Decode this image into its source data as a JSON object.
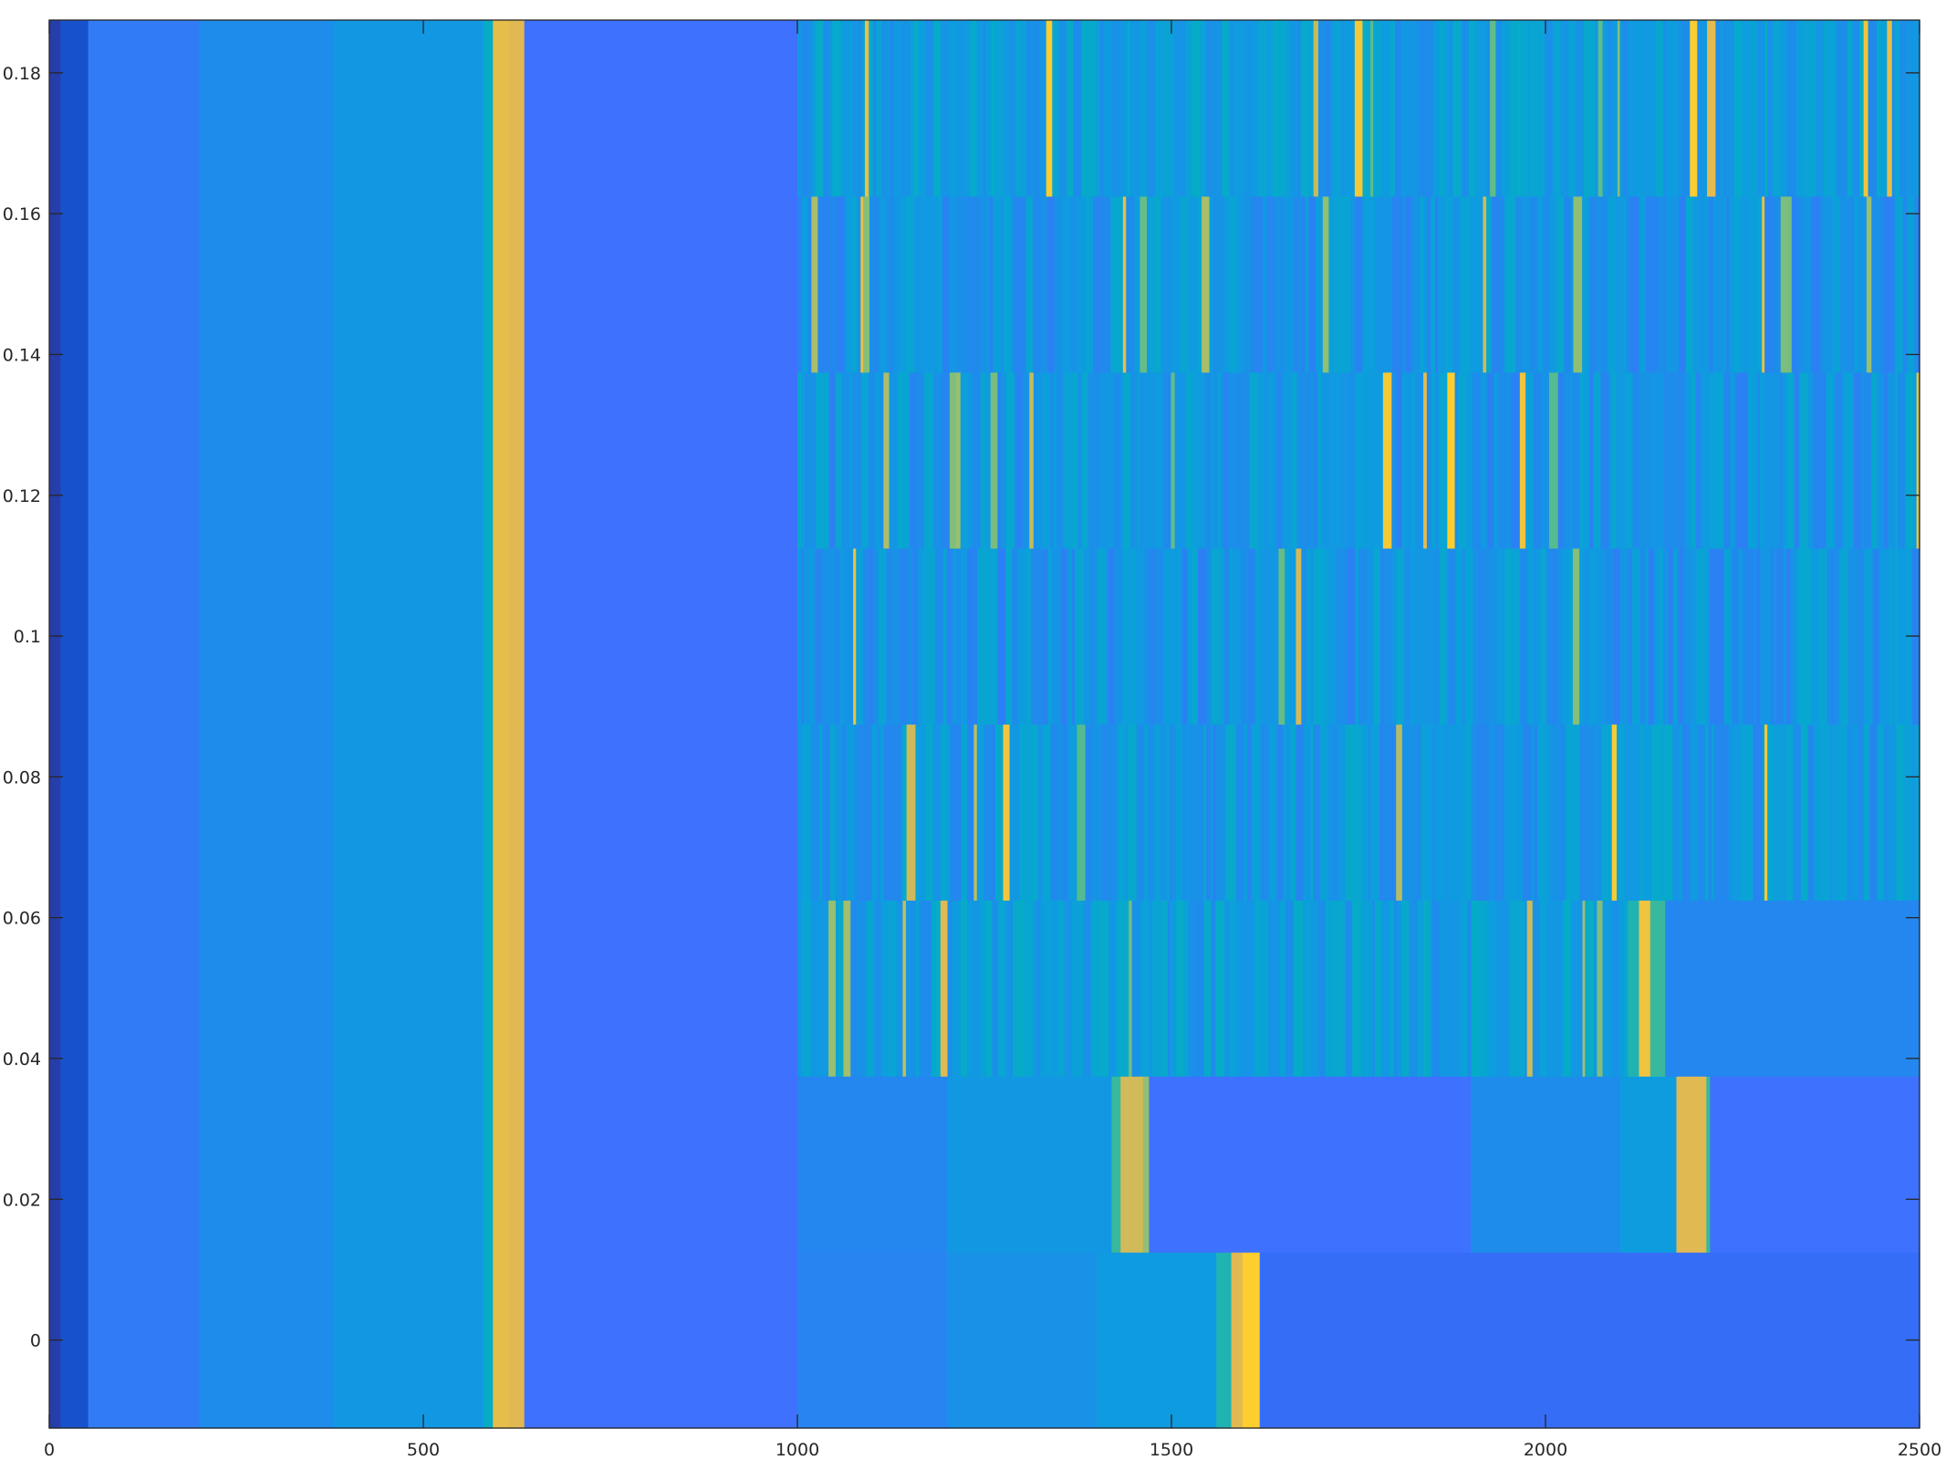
{
  "chart_data": {
    "type": "heatmap",
    "title": "",
    "xlabel": "",
    "ylabel": "",
    "xlim": [
      0,
      2500
    ],
    "ylim": [
      -0.0125,
      0.1875
    ],
    "grid": false,
    "colormap": "parula",
    "value_range": [
      0,
      1
    ],
    "x_ticks": [
      {
        "value": 0,
        "label": "0"
      },
      {
        "value": 500,
        "label": "500"
      },
      {
        "value": 1000,
        "label": "1000"
      },
      {
        "value": 1500,
        "label": "1500"
      },
      {
        "value": 2000,
        "label": "2000"
      },
      {
        "value": 2500,
        "label": "2500"
      }
    ],
    "y_ticks": [
      {
        "value": 0,
        "label": "0"
      },
      {
        "value": 0.02,
        "label": "0.02"
      },
      {
        "value": 0.04,
        "label": "0.04"
      },
      {
        "value": 0.06,
        "label": "0.06"
      },
      {
        "value": 0.08,
        "label": "0.08"
      },
      {
        "value": 0.1,
        "label": "0.1"
      },
      {
        "value": 0.12,
        "label": "0.12"
      },
      {
        "value": 0.14,
        "label": "0.14"
      },
      {
        "value": 0.16,
        "label": "0.16"
      },
      {
        "value": 0.18,
        "label": "0.18"
      }
    ],
    "rows": [
      {
        "y": 0.0,
        "columns": [
          {
            "x": [
              0,
              15
            ],
            "v": 0.04
          },
          {
            "x": [
              15,
              52
            ],
            "v": 0.08
          },
          {
            "x": [
              52,
              200
            ],
            "v": 0.24
          },
          {
            "x": [
              200,
              380
            ],
            "v": 0.3
          },
          {
            "x": [
              380,
              580
            ],
            "v": 0.37
          },
          {
            "x": [
              580,
              593
            ],
            "v": 0.5
          },
          {
            "x": [
              593,
              615
            ],
            "v": 0.82
          },
          {
            "x": [
              615,
              635
            ],
            "v": 0.8
          },
          {
            "x": [
              635,
              1000
            ],
            "v": 0.2
          },
          {
            "x": [
              1000,
              1200
            ],
            "v": 0.27
          },
          {
            "x": [
              1200,
              1400
            ],
            "v": 0.33
          },
          {
            "x": [
              1400,
              1560
            ],
            "v": 0.39
          },
          {
            "x": [
              1560,
              1580
            ],
            "v": 0.55
          },
          {
            "x": [
              1580,
              1595
            ],
            "v": 0.8
          },
          {
            "x": [
              1595,
              1618
            ],
            "v": 0.9
          },
          {
            "x": [
              1618,
              2500
            ],
            "v": 0.18
          }
        ]
      },
      {
        "y": 0.025,
        "columns": [
          {
            "x": [
              0,
              15
            ],
            "v": 0.04
          },
          {
            "x": [
              15,
              52
            ],
            "v": 0.08
          },
          {
            "x": [
              52,
              200
            ],
            "v": 0.24
          },
          {
            "x": [
              200,
              380
            ],
            "v": 0.3
          },
          {
            "x": [
              380,
              580
            ],
            "v": 0.37
          },
          {
            "x": [
              580,
              593
            ],
            "v": 0.5
          },
          {
            "x": [
              593,
              615
            ],
            "v": 0.82
          },
          {
            "x": [
              615,
              635
            ],
            "v": 0.8
          },
          {
            "x": [
              635,
              1000
            ],
            "v": 0.2
          },
          {
            "x": [
              1000,
              1200
            ],
            "v": 0.28
          },
          {
            "x": [
              1200,
              1420
            ],
            "v": 0.37
          },
          {
            "x": [
              1420,
              1432
            ],
            "v": 0.6
          },
          {
            "x": [
              1432,
              1462
            ],
            "v": 0.78
          },
          {
            "x": [
              1462,
              1470
            ],
            "v": 0.7
          },
          {
            "x": [
              1470,
              1900
            ],
            "v": 0.2
          },
          {
            "x": [
              1900,
              2100
            ],
            "v": 0.3
          },
          {
            "x": [
              2100,
              2175
            ],
            "v": 0.4
          },
          {
            "x": [
              2175,
              2215
            ],
            "v": 0.8
          },
          {
            "x": [
              2215,
              2220
            ],
            "v": 0.6
          },
          {
            "x": [
              2220,
              2500
            ],
            "v": 0.2
          }
        ]
      },
      {
        "y": 0.05,
        "columns": [
          {
            "x": [
              0,
              15
            ],
            "v": 0.04
          },
          {
            "x": [
              15,
              52
            ],
            "v": 0.08
          },
          {
            "x": [
              52,
              200
            ],
            "v": 0.24
          },
          {
            "x": [
              200,
              380
            ],
            "v": 0.3
          },
          {
            "x": [
              380,
              580
            ],
            "v": 0.37
          },
          {
            "x": [
              580,
              593
            ],
            "v": 0.5
          },
          {
            "x": [
              593,
              615
            ],
            "v": 0.82
          },
          {
            "x": [
              615,
              635
            ],
            "v": 0.8
          },
          {
            "x": [
              635,
              1000
            ],
            "v": 0.2
          },
          {
            "x": [
              1000,
              2110
            ],
            "v": 0.4,
            "stripes": true,
            "seed": 11
          },
          {
            "x": [
              2110,
              2125
            ],
            "v": 0.55
          },
          {
            "x": [
              2125,
              2140
            ],
            "v": 0.85
          },
          {
            "x": [
              2140,
              2160
            ],
            "v": 0.6
          },
          {
            "x": [
              2160,
              2500
            ],
            "v": 0.28
          }
        ]
      },
      {
        "y": 0.075,
        "columns": [
          {
            "x": [
              0,
              15
            ],
            "v": 0.04
          },
          {
            "x": [
              15,
              52
            ],
            "v": 0.08
          },
          {
            "x": [
              52,
              200
            ],
            "v": 0.24
          },
          {
            "x": [
              200,
              380
            ],
            "v": 0.3
          },
          {
            "x": [
              380,
              580
            ],
            "v": 0.37
          },
          {
            "x": [
              580,
              593
            ],
            "v": 0.5
          },
          {
            "x": [
              593,
              615
            ],
            "v": 0.82
          },
          {
            "x": [
              615,
              635
            ],
            "v": 0.8
          },
          {
            "x": [
              635,
              1000
            ],
            "v": 0.2
          },
          {
            "x": [
              1000,
              2500
            ],
            "v": 0.38,
            "stripes": true,
            "seed": 23
          }
        ]
      },
      {
        "y": 0.1,
        "columns": [
          {
            "x": [
              0,
              15
            ],
            "v": 0.04
          },
          {
            "x": [
              15,
              52
            ],
            "v": 0.08
          },
          {
            "x": [
              52,
              200
            ],
            "v": 0.24
          },
          {
            "x": [
              200,
              380
            ],
            "v": 0.3
          },
          {
            "x": [
              380,
              580
            ],
            "v": 0.37
          },
          {
            "x": [
              580,
              593
            ],
            "v": 0.5
          },
          {
            "x": [
              593,
              615
            ],
            "v": 0.82
          },
          {
            "x": [
              615,
              635
            ],
            "v": 0.8
          },
          {
            "x": [
              635,
              1000
            ],
            "v": 0.2
          },
          {
            "x": [
              1000,
              2500
            ],
            "v": 0.36,
            "stripes": true,
            "seed": 37
          }
        ]
      },
      {
        "y": 0.125,
        "columns": [
          {
            "x": [
              0,
              15
            ],
            "v": 0.04
          },
          {
            "x": [
              15,
              52
            ],
            "v": 0.08
          },
          {
            "x": [
              52,
              200
            ],
            "v": 0.24
          },
          {
            "x": [
              200,
              380
            ],
            "v": 0.3
          },
          {
            "x": [
              380,
              580
            ],
            "v": 0.37
          },
          {
            "x": [
              580,
              593
            ],
            "v": 0.5
          },
          {
            "x": [
              593,
              615
            ],
            "v": 0.82
          },
          {
            "x": [
              615,
              635
            ],
            "v": 0.8
          },
          {
            "x": [
              635,
              1000
            ],
            "v": 0.2
          },
          {
            "x": [
              1000,
              2500
            ],
            "v": 0.36,
            "stripes": true,
            "seed": 41
          }
        ]
      },
      {
        "y": 0.15,
        "columns": [
          {
            "x": [
              0,
              15
            ],
            "v": 0.04
          },
          {
            "x": [
              15,
              52
            ],
            "v": 0.08
          },
          {
            "x": [
              52,
              200
            ],
            "v": 0.24
          },
          {
            "x": [
              200,
              380
            ],
            "v": 0.3
          },
          {
            "x": [
              380,
              580
            ],
            "v": 0.37
          },
          {
            "x": [
              580,
              593
            ],
            "v": 0.5
          },
          {
            "x": [
              593,
              615
            ],
            "v": 0.82
          },
          {
            "x": [
              615,
              635
            ],
            "v": 0.8
          },
          {
            "x": [
              635,
              1000
            ],
            "v": 0.2
          },
          {
            "x": [
              1000,
              2500
            ],
            "v": 0.36,
            "stripes": true,
            "seed": 53
          }
        ]
      },
      {
        "y": 0.175,
        "columns": [
          {
            "x": [
              0,
              15
            ],
            "v": 0.04
          },
          {
            "x": [
              15,
              52
            ],
            "v": 0.08
          },
          {
            "x": [
              52,
              200
            ],
            "v": 0.24
          },
          {
            "x": [
              200,
              380
            ],
            "v": 0.3
          },
          {
            "x": [
              380,
              580
            ],
            "v": 0.37
          },
          {
            "x": [
              580,
              593
            ],
            "v": 0.5
          },
          {
            "x": [
              593,
              615
            ],
            "v": 0.82
          },
          {
            "x": [
              615,
              635
            ],
            "v": 0.8
          },
          {
            "x": [
              635,
              1000
            ],
            "v": 0.2
          },
          {
            "x": [
              1000,
              2500
            ],
            "v": 0.4,
            "stripes": true,
            "seed": 67
          }
        ]
      }
    ]
  }
}
